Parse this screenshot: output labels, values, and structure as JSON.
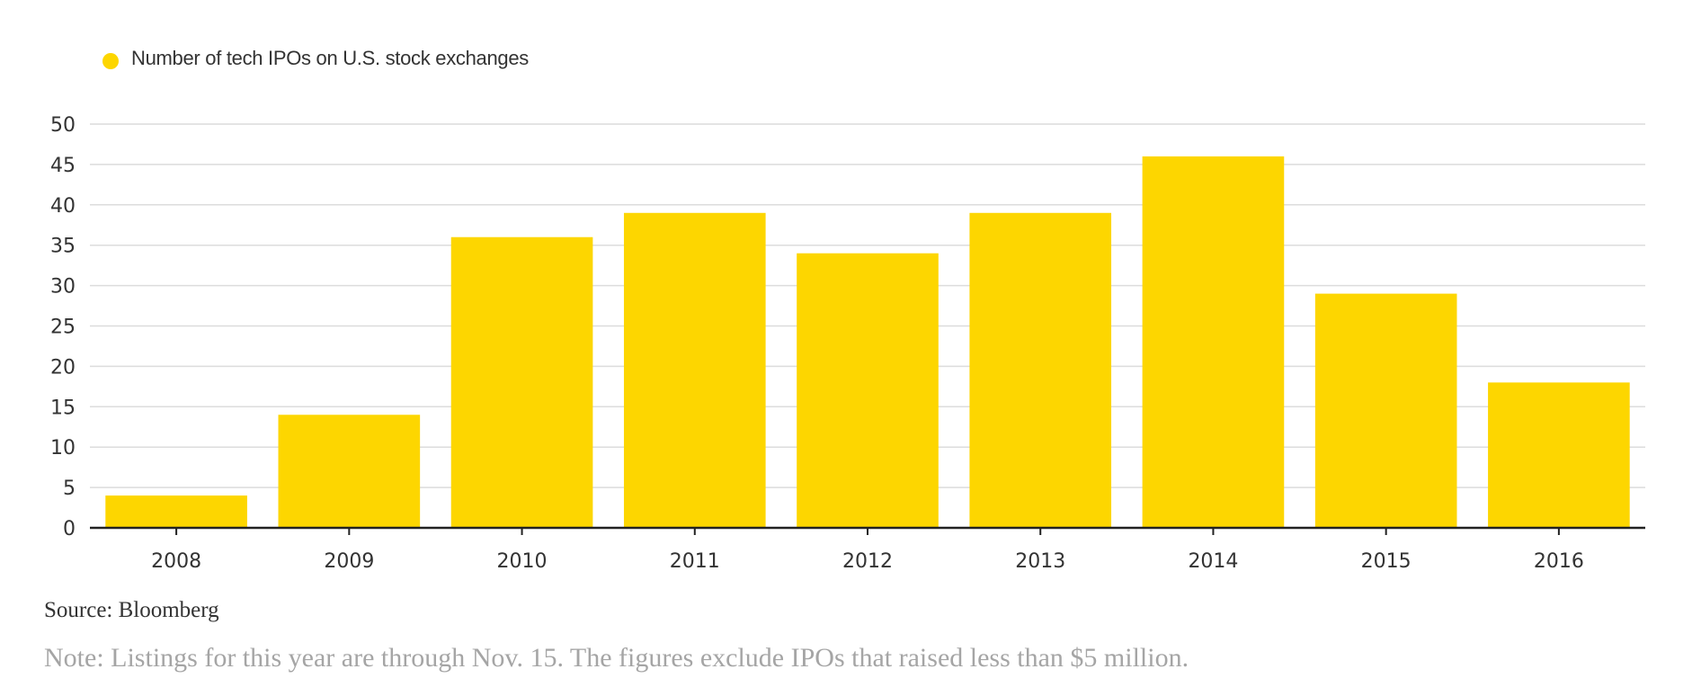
{
  "legend": {
    "label": "Number of tech IPOs on U.S. stock exchanges",
    "color": "#FDD600"
  },
  "chart_data": {
    "type": "bar",
    "categories": [
      "2008",
      "2009",
      "2010",
      "2011",
      "2012",
      "2013",
      "2014",
      "2015",
      "2016"
    ],
    "series": [
      {
        "name": "Number of tech IPOs on U.S. stock exchanges",
        "values": [
          4,
          14,
          36,
          39,
          34,
          39,
          46,
          29,
          18
        ]
      }
    ],
    "yticks": [
      0,
      5,
      10,
      15,
      20,
      25,
      30,
      35,
      40,
      45,
      50
    ],
    "ylim": [
      0,
      50
    ],
    "xlabel": "",
    "ylabel": "",
    "grid": true,
    "legend_position": "top-left",
    "bar_color": "#FDD600"
  },
  "source": "Source: Bloomberg",
  "note": "Note: Listings for this year are through Nov. 15. The figures exclude IPOs that raised less than $5 million."
}
